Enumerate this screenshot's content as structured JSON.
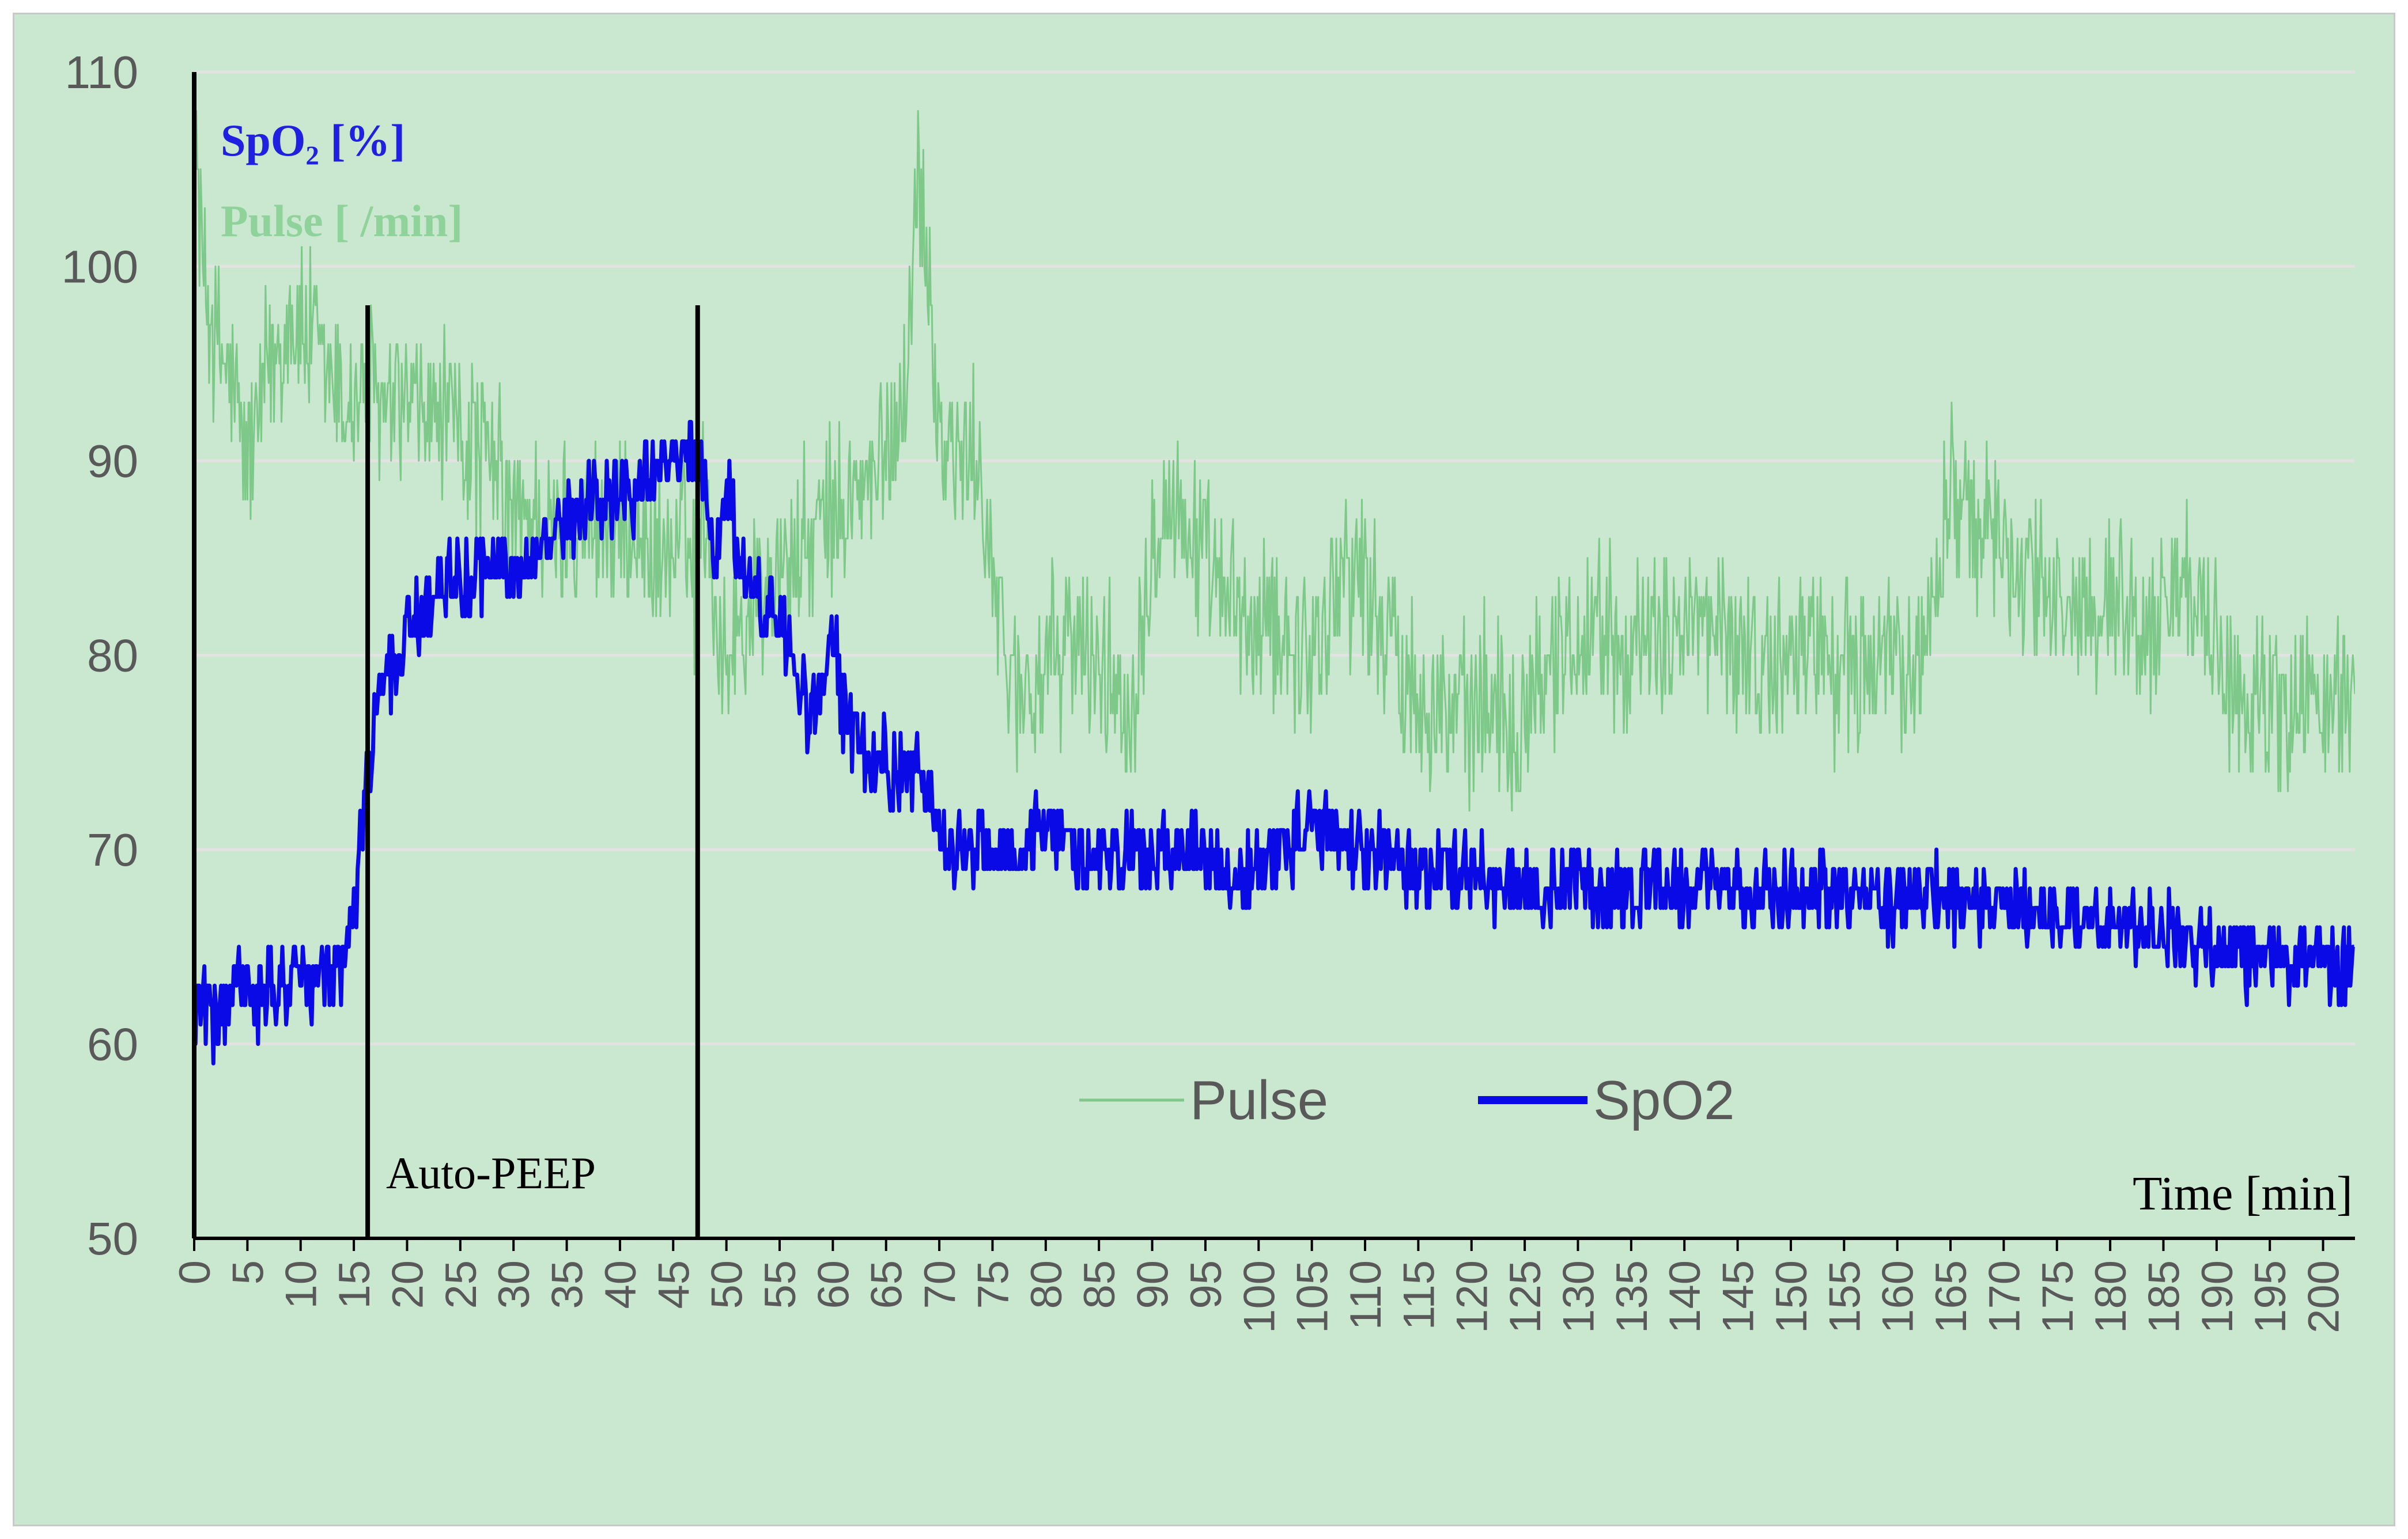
{
  "chart_data": {
    "type": "line",
    "title": "",
    "xlabel": "Time [min]",
    "ylabel_lines": [
      "SpO₂ [%]",
      "Pulse [ /min]"
    ],
    "xlim": [
      0,
      203
    ],
    "ylim": [
      50,
      110
    ],
    "yticks": [
      50,
      60,
      70,
      80,
      90,
      100,
      110
    ],
    "xticks": [
      0,
      5,
      10,
      15,
      20,
      25,
      30,
      35,
      40,
      45,
      50,
      55,
      60,
      65,
      70,
      75,
      80,
      85,
      90,
      95,
      100,
      105,
      110,
      115,
      120,
      125,
      130,
      135,
      140,
      145,
      150,
      155,
      160,
      165,
      170,
      175,
      180,
      185,
      190,
      195,
      200
    ],
    "grid": true,
    "legend_position": "bottom-center",
    "annotation": "Auto-PEEP",
    "markers": [
      {
        "x": 0,
        "top": 110
      },
      {
        "x": 16.3,
        "top": 98
      },
      {
        "x": 47.3,
        "top": 98
      }
    ],
    "series": [
      {
        "name": "Pulse",
        "color": "#7ec98a",
        "x": [
          0,
          1,
          2,
          3,
          4,
          5,
          6,
          7,
          8,
          9,
          10,
          11,
          12,
          13,
          14,
          15,
          16,
          17,
          18,
          20,
          22,
          24,
          26,
          28,
          30,
          32,
          34,
          36,
          38,
          40,
          42,
          44,
          46,
          47,
          48,
          49,
          50,
          52,
          54,
          56,
          58,
          60,
          62,
          64,
          66,
          67,
          68,
          69,
          70,
          71,
          72,
          73,
          74,
          76,
          78,
          80,
          82,
          84,
          86,
          88,
          90,
          92,
          94,
          96,
          98,
          100,
          102,
          104,
          106,
          108,
          110,
          112,
          114,
          116,
          118,
          120,
          122,
          124,
          126,
          128,
          130,
          132,
          134,
          136,
          138,
          140,
          142,
          144,
          146,
          148,
          150,
          152,
          154,
          156,
          158,
          160,
          162,
          164,
          165,
          166,
          168,
          170,
          172,
          174,
          176,
          178,
          180,
          182,
          184,
          186,
          188,
          190,
          192,
          194,
          196,
          198,
          200,
          202,
          203
        ],
        "values": [
          108,
          99,
          96,
          95,
          93,
          90,
          92,
          95,
          96,
          97,
          97,
          96,
          95,
          94,
          93,
          93,
          94,
          93,
          92,
          93,
          92,
          92,
          91,
          90,
          87,
          87,
          86,
          87,
          87,
          86,
          86,
          85,
          86,
          84,
          88,
          82,
          80,
          82,
          84,
          85,
          86,
          87,
          88,
          89,
          92,
          95,
          105,
          100,
          91,
          91,
          90,
          90,
          89,
          80,
          78,
          79,
          81,
          80,
          79,
          77,
          87,
          88,
          86,
          83,
          82,
          81,
          82,
          80,
          81,
          85,
          84,
          81,
          79,
          78,
          77,
          77,
          78,
          76,
          79,
          80,
          81,
          82,
          81,
          80,
          81,
          82,
          81,
          81,
          80,
          79,
          80,
          81,
          79,
          80,
          79,
          80,
          79,
          85,
          89,
          88,
          86,
          86,
          84,
          83,
          82,
          83,
          83,
          82,
          81,
          84,
          82,
          80,
          78,
          78,
          77,
          78,
          77,
          78,
          79
        ]
      },
      {
        "name": "SpO2",
        "color": "#0a0ae6",
        "x": [
          0,
          1,
          2,
          3,
          4,
          5,
          6,
          7,
          8,
          9,
          10,
          11,
          12,
          13,
          14,
          15,
          16,
          17,
          18,
          19,
          20,
          22,
          24,
          26,
          28,
          30,
          32,
          34,
          36,
          38,
          40,
          42,
          44,
          46,
          47,
          48,
          49,
          50,
          51,
          52,
          54,
          56,
          57,
          58,
          59,
          60,
          61,
          62,
          64,
          66,
          68,
          70,
          72,
          75,
          78,
          80,
          82,
          85,
          88,
          90,
          92,
          95,
          98,
          100,
          102,
          104,
          106,
          108,
          110,
          112,
          115,
          118,
          120,
          122,
          125,
          128,
          130,
          132,
          135,
          138,
          140,
          142,
          145,
          148,
          150,
          152,
          155,
          158,
          160,
          162,
          165,
          168,
          170,
          172,
          175,
          178,
          180,
          182,
          185,
          188,
          190,
          192,
          195,
          198,
          200,
          202,
          203
        ],
        "values": [
          62,
          62,
          61,
          62,
          63,
          63,
          62,
          63,
          62,
          64,
          64,
          63,
          63,
          63,
          64,
          67,
          72,
          77,
          79,
          80,
          81,
          83,
          84,
          84,
          85,
          84,
          85,
          86,
          87,
          88,
          88,
          89,
          90,
          90,
          91,
          89,
          84,
          89,
          86,
          84,
          82,
          81,
          78,
          77,
          78,
          81,
          77,
          76,
          75,
          74,
          74,
          71,
          70,
          70,
          70,
          71,
          70,
          70,
          70,
          69,
          70,
          70,
          68,
          69,
          70,
          71,
          71,
          70,
          70,
          70,
          69,
          69,
          69,
          68,
          68,
          68,
          69,
          68,
          68,
          68,
          68,
          68,
          68,
          68,
          68,
          68,
          68,
          68,
          67,
          68,
          67,
          67,
          67,
          67,
          67,
          66,
          66,
          66,
          66,
          65,
          65,
          65,
          64,
          64,
          64,
          64,
          64
        ]
      }
    ]
  }
}
